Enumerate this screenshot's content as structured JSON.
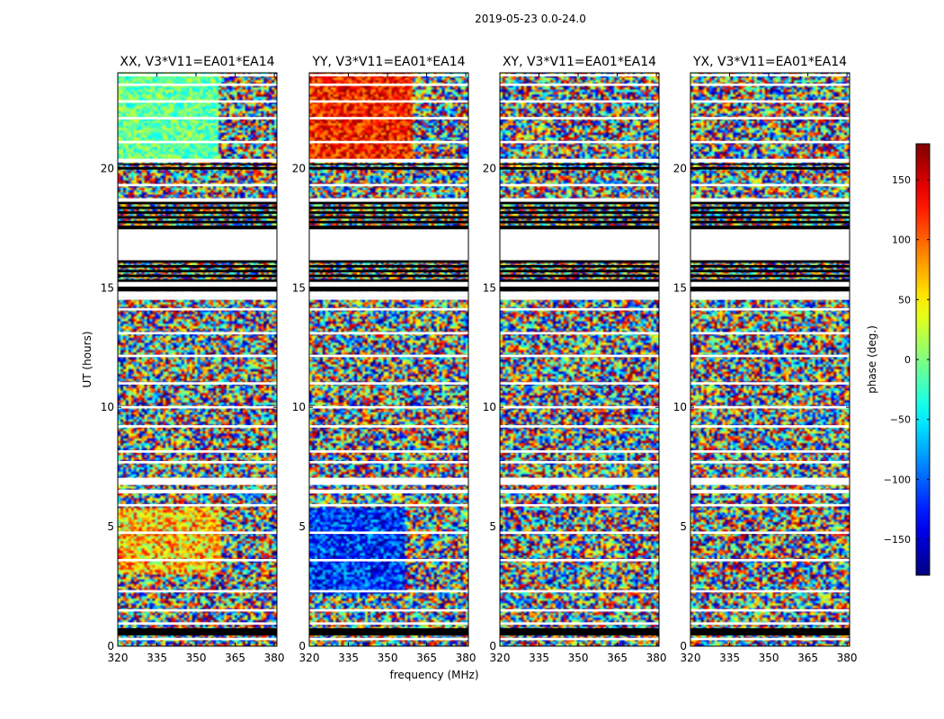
{
  "page": {
    "suptitle": "2019-05-23 0.0-24.0"
  },
  "chart_data": {
    "type": "heatmap",
    "panels": [
      {
        "title": "XX, V3*V11=EA01*EA14",
        "base": "green-band",
        "corr": "parallel"
      },
      {
        "title": "YY, V3*V11=EA01*EA14",
        "base": "red-blue",
        "corr": "parallel"
      },
      {
        "title": "XY, V3*V11=EA01*EA14",
        "base": "noise",
        "corr": "cross"
      },
      {
        "title": "YX, V3*V11=EA01*EA14",
        "base": "noise",
        "corr": "cross"
      }
    ],
    "x_ticks": [
      "320",
      "335",
      "350",
      "365",
      "380"
    ],
    "x_tick_values": [
      320,
      335,
      350,
      365,
      380
    ],
    "xlim": [
      320,
      381
    ],
    "y_ticks": [
      "0",
      "5",
      "10",
      "15",
      "20"
    ],
    "y_tick_values": [
      0,
      5,
      10,
      15,
      20
    ],
    "ylim": [
      0,
      24
    ],
    "xlabel": "frequency (MHz)",
    "ylabel": "UT (hours)",
    "colorbar": {
      "label": "phase (deg.)",
      "ticks": [
        "150",
        "100",
        "50",
        "0",
        "−50",
        "−100",
        "−150"
      ],
      "tick_values": [
        150,
        100,
        50,
        0,
        -50,
        -100,
        -150
      ],
      "range": [
        -180,
        180
      ],
      "colormap": "jet"
    },
    "flagged_black_ut": [
      [
        0.45,
        0.75
      ],
      [
        14.85,
        15.05
      ],
      [
        15.25,
        15.35
      ],
      [
        15.45,
        15.55
      ],
      [
        15.65,
        15.75
      ],
      [
        15.85,
        15.95
      ],
      [
        16.05,
        16.15
      ],
      [
        17.45,
        17.6
      ],
      [
        17.7,
        17.8
      ],
      [
        17.9,
        18.0
      ],
      [
        18.1,
        18.2
      ],
      [
        18.3,
        18.4
      ],
      [
        18.5,
        18.6
      ],
      [
        19.95,
        20.05
      ],
      [
        20.15,
        20.2
      ]
    ],
    "flagged_white_ut": [
      [
        0.25,
        0.35
      ],
      [
        0.9,
        1.0
      ],
      [
        1.45,
        1.55
      ],
      [
        2.25,
        2.35
      ],
      [
        3.55,
        3.65
      ],
      [
        4.7,
        4.8
      ],
      [
        5.85,
        5.95
      ],
      [
        6.4,
        6.55
      ],
      [
        6.75,
        7.05
      ],
      [
        7.65,
        7.75
      ],
      [
        8.1,
        8.2
      ],
      [
        9.15,
        9.25
      ],
      [
        9.95,
        10.05
      ],
      [
        10.95,
        11.05
      ],
      [
        12.1,
        12.2
      ],
      [
        13.05,
        13.15
      ],
      [
        14.05,
        14.15
      ],
      [
        14.5,
        14.6
      ],
      [
        14.6,
        14.85
      ],
      [
        15.05,
        15.25
      ],
      [
        16.15,
        17.45
      ],
      [
        18.6,
        18.75
      ],
      [
        19.25,
        19.35
      ],
      [
        20.25,
        20.4
      ],
      [
        21.05,
        21.15
      ],
      [
        22.05,
        22.15
      ],
      [
        22.75,
        22.85
      ],
      [
        23.45,
        23.55
      ],
      [
        23.85,
        23.95
      ]
    ]
  }
}
